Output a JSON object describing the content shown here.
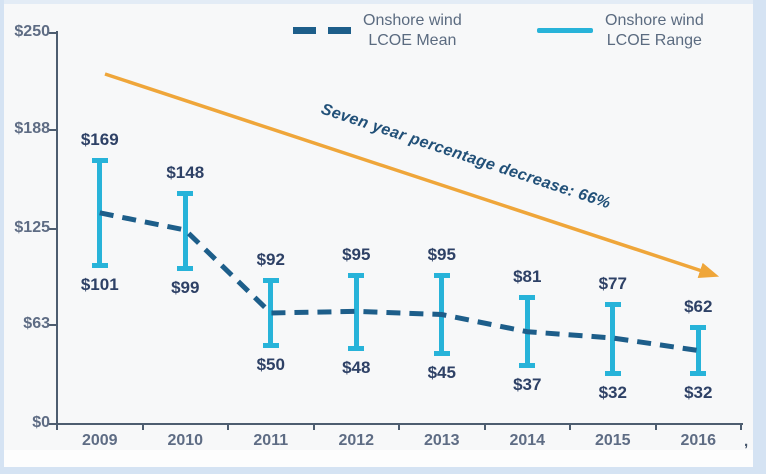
{
  "figure": {
    "background": "#f7f8f9",
    "frame_color": "#d5e3f3",
    "top_strip_color": "#e3ecf6",
    "bottom_band_color": "#fdfdfd"
  },
  "legend": {
    "text_color": "#5b6b80",
    "entries": [
      {
        "id": "mean",
        "line1": "Onshore wind",
        "line2": "LCOE Mean",
        "swatch": "dashed",
        "color": "#1d5e8a"
      },
      {
        "id": "range",
        "line1": "Onshore wind",
        "line2": "LCOE Range",
        "swatch": "solid",
        "color": "#27b3d9"
      }
    ]
  },
  "annotation": {
    "text": "Seven year percentage decrease: 66%",
    "text_color": "#215078",
    "arrow_color": "#efa63a"
  },
  "axis_footnote_mark": ",",
  "chart_data": {
    "type": "line",
    "variant": "dashed-mean-line-with-error-range-bars",
    "title": "",
    "xlabel": "",
    "ylabel": "",
    "grid": false,
    "legend_position": "top",
    "categories": [
      "2009",
      "2010",
      "2011",
      "2012",
      "2013",
      "2014",
      "2015",
      "2016"
    ],
    "series": [
      {
        "name": "Onshore wind LCOE Mean",
        "style": "dashed",
        "color": "#1d5e8a",
        "values": [
          135,
          124,
          71,
          72,
          70,
          59,
          55,
          47
        ]
      },
      {
        "name": "Onshore wind LCOE Range",
        "style": "error-bar",
        "color": "#27b3d9",
        "high": [
          169,
          148,
          92,
          95,
          95,
          81,
          77,
          62
        ],
        "low": [
          101,
          99,
          50,
          48,
          45,
          37,
          32,
          32
        ]
      }
    ],
    "data_labels": {
      "high": [
        "$169",
        "$148",
        "$92",
        "$95",
        "$95",
        "$81",
        "$77",
        "$62"
      ],
      "low": [
        "$101",
        "$99",
        "$50",
        "$48",
        "$45",
        "$37",
        "$32",
        "$32"
      ]
    },
    "y_ticks": [
      {
        "value": 250,
        "label": "$250"
      },
      {
        "value": 188,
        "label": "$188"
      },
      {
        "value": 125,
        "label": "$125"
      },
      {
        "value": 63,
        "label": "$63"
      },
      {
        "value": 0,
        "label": "$0"
      }
    ],
    "ylim": [
      0,
      250
    ],
    "axis_color": "#4d5d70",
    "axis_label_color": "#5e6c84",
    "data_label_color": "#2e4166"
  }
}
